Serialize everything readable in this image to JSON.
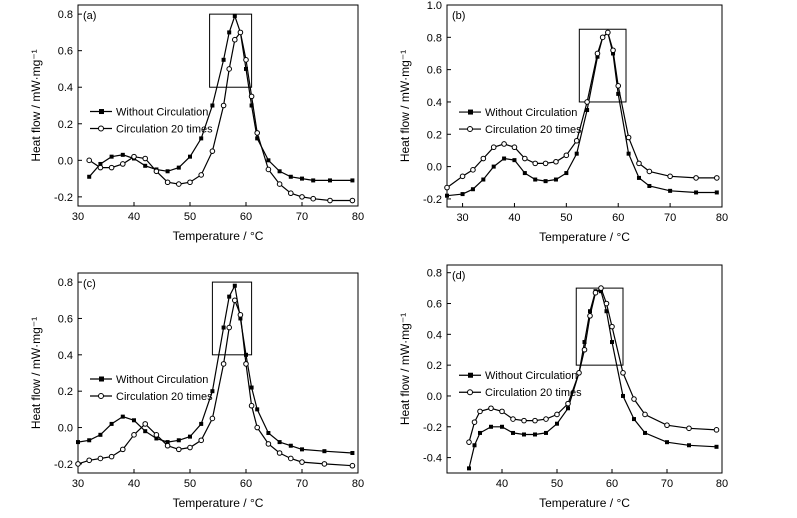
{
  "chart_data": [
    {
      "type": "line",
      "panel_label": "(a)",
      "xlabel": "Temperature / °C",
      "ylabel": "Heat flow / mW·mg⁻¹",
      "xlim": [
        30,
        80
      ],
      "ylim": [
        -0.25,
        0.85
      ],
      "xticks": [
        30,
        40,
        50,
        60,
        70,
        80
      ],
      "yticks": [
        -0.2,
        0.0,
        0.2,
        0.4,
        0.6,
        0.8
      ],
      "xtick_labels": [
        "30",
        "40",
        "50",
        "60",
        "70",
        "80"
      ],
      "ytick_labels": [
        "-0.2",
        "0.0",
        "0.2",
        "0.4",
        "0.6",
        "0.8"
      ],
      "grid": false,
      "legend_position": "center-left",
      "highlight_box": {
        "x": [
          53.5,
          61
        ],
        "y": [
          0.4,
          0.8
        ]
      },
      "series": [
        {
          "name": "Without Circulation",
          "marker": "filled-square",
          "x": [
            32,
            34,
            36,
            38,
            40,
            42,
            44,
            46,
            48,
            50,
            52,
            54,
            56,
            57,
            58,
            59,
            60,
            61,
            62,
            64,
            66,
            68,
            70,
            72,
            75,
            79
          ],
          "y": [
            -0.09,
            -0.02,
            0.02,
            0.03,
            0.01,
            -0.03,
            -0.05,
            -0.06,
            -0.04,
            0.02,
            0.12,
            0.3,
            0.55,
            0.7,
            0.79,
            0.7,
            0.5,
            0.3,
            0.12,
            0.0,
            -0.06,
            -0.09,
            -0.1,
            -0.11,
            -0.11,
            -0.11
          ]
        },
        {
          "name": "Circulation 20 times",
          "marker": "open-circle",
          "x": [
            32,
            34,
            36,
            38,
            40,
            42,
            44,
            46,
            48,
            50,
            52,
            54,
            56,
            57,
            58,
            59,
            60,
            61,
            62,
            64,
            66,
            68,
            70,
            72,
            75,
            79
          ],
          "y": [
            0.0,
            -0.04,
            -0.04,
            -0.02,
            0.02,
            0.01,
            -0.06,
            -0.12,
            -0.13,
            -0.12,
            -0.08,
            0.05,
            0.3,
            0.5,
            0.66,
            0.7,
            0.55,
            0.35,
            0.15,
            -0.05,
            -0.13,
            -0.18,
            -0.2,
            -0.21,
            -0.22,
            -0.22
          ]
        }
      ]
    },
    {
      "type": "line",
      "panel_label": "(b)",
      "xlabel": "Temperature / °C",
      "ylabel": "Heat flow / mW·mg⁻¹",
      "xlim": [
        27,
        80
      ],
      "ylim": [
        -0.25,
        1.0
      ],
      "xticks": [
        30,
        40,
        50,
        60,
        70,
        80
      ],
      "yticks": [
        -0.2,
        0.0,
        0.2,
        0.4,
        0.6,
        0.8,
        1.0
      ],
      "xtick_labels": [
        "30",
        "40",
        "50",
        "60",
        "70",
        "80"
      ],
      "ytick_labels": [
        "-0.2",
        "0.0",
        "0.2",
        "0.4",
        "0.6",
        "0.8",
        "1.0"
      ],
      "grid": false,
      "legend_position": "center-left",
      "highlight_box": {
        "x": [
          52.5,
          61.5
        ],
        "y": [
          0.4,
          0.85
        ]
      },
      "series": [
        {
          "name": "Without Circulation",
          "marker": "filled-square",
          "x": [
            27,
            30,
            32,
            34,
            36,
            38,
            40,
            42,
            44,
            46,
            48,
            50,
            52,
            54,
            56,
            57,
            58,
            59,
            60,
            62,
            64,
            66,
            70,
            75,
            79
          ],
          "y": [
            -0.18,
            -0.17,
            -0.14,
            -0.08,
            0.0,
            0.05,
            0.04,
            -0.04,
            -0.08,
            -0.09,
            -0.08,
            -0.04,
            0.08,
            0.35,
            0.68,
            0.8,
            0.83,
            0.7,
            0.45,
            0.08,
            -0.07,
            -0.12,
            -0.15,
            -0.16,
            -0.16
          ]
        },
        {
          "name": "Circulation 20 times",
          "marker": "open-circle",
          "x": [
            27,
            30,
            32,
            34,
            36,
            38,
            40,
            42,
            44,
            46,
            48,
            50,
            52,
            54,
            56,
            57,
            58,
            59,
            60,
            62,
            64,
            66,
            70,
            75,
            79
          ],
          "y": [
            -0.13,
            -0.06,
            -0.02,
            0.05,
            0.12,
            0.14,
            0.12,
            0.05,
            0.02,
            0.02,
            0.03,
            0.07,
            0.16,
            0.4,
            0.7,
            0.8,
            0.83,
            0.72,
            0.5,
            0.18,
            0.02,
            -0.03,
            -0.06,
            -0.07,
            -0.07
          ]
        }
      ]
    },
    {
      "type": "line",
      "panel_label": "(c)",
      "xlabel": "Temperature / °C",
      "ylabel": "Heat flow / mW·mg⁻¹",
      "xlim": [
        30,
        80
      ],
      "ylim": [
        -0.25,
        0.85
      ],
      "xticks": [
        30,
        40,
        50,
        60,
        70,
        80
      ],
      "yticks": [
        -0.2,
        0.0,
        0.2,
        0.4,
        0.6,
        0.8
      ],
      "xtick_labels": [
        "30",
        "40",
        "50",
        "60",
        "70",
        "80"
      ],
      "ytick_labels": [
        "-0.2",
        "0.0",
        "0.2",
        "0.4",
        "0.6",
        "0.8"
      ],
      "grid": false,
      "legend_position": "center-left",
      "highlight_box": {
        "x": [
          54,
          61
        ],
        "y": [
          0.4,
          0.8
        ]
      },
      "series": [
        {
          "name": "Without Circulation",
          "marker": "filled-square",
          "x": [
            30,
            32,
            34,
            36,
            38,
            40,
            42,
            44,
            46,
            48,
            50,
            52,
            54,
            56,
            57,
            58,
            59,
            60,
            61,
            62,
            64,
            66,
            68,
            70,
            74,
            79
          ],
          "y": [
            -0.08,
            -0.07,
            -0.04,
            0.02,
            0.06,
            0.04,
            -0.02,
            -0.06,
            -0.08,
            -0.07,
            -0.05,
            0.02,
            0.2,
            0.55,
            0.72,
            0.78,
            0.6,
            0.4,
            0.22,
            0.1,
            -0.03,
            -0.08,
            -0.1,
            -0.12,
            -0.13,
            -0.14
          ]
        },
        {
          "name": "Circulation 20 times",
          "marker": "open-circle",
          "x": [
            30,
            32,
            34,
            36,
            38,
            40,
            42,
            44,
            46,
            48,
            50,
            52,
            54,
            56,
            57,
            58,
            59,
            60,
            61,
            62,
            64,
            66,
            68,
            70,
            74,
            79
          ],
          "y": [
            -0.2,
            -0.18,
            -0.17,
            -0.16,
            -0.12,
            -0.04,
            0.02,
            -0.04,
            -0.1,
            -0.12,
            -0.11,
            -0.07,
            0.05,
            0.35,
            0.55,
            0.7,
            0.62,
            0.35,
            0.12,
            0.0,
            -0.09,
            -0.14,
            -0.17,
            -0.19,
            -0.2,
            -0.21
          ]
        }
      ]
    },
    {
      "type": "line",
      "panel_label": "(d)",
      "xlabel": "Temperature / °C",
      "ylabel": "Heat flow / mW·mg⁻¹",
      "xlim": [
        30,
        80
      ],
      "ylim": [
        -0.5,
        0.85
      ],
      "xticks": [
        40,
        50,
        60,
        70,
        80
      ],
      "yticks": [
        -0.4,
        -0.2,
        0.0,
        0.2,
        0.4,
        0.6,
        0.8
      ],
      "xtick_labels": [
        "40",
        "50",
        "60",
        "70",
        "80"
      ],
      "ytick_labels": [
        "-0.4",
        "-0.2",
        "0.0",
        "0.2",
        "0.4",
        "0.6",
        "0.8"
      ],
      "grid": false,
      "legend_position": "center-left",
      "highlight_box": {
        "x": [
          53.5,
          62
        ],
        "y": [
          0.2,
          0.7
        ]
      },
      "series": [
        {
          "name": "Without Circulation",
          "marker": "filled-square",
          "x": [
            34,
            35,
            36,
            38,
            40,
            42,
            44,
            46,
            48,
            50,
            52,
            54,
            55,
            56,
            57,
            58,
            59,
            60,
            62,
            64,
            66,
            70,
            74,
            79
          ],
          "y": [
            -0.47,
            -0.32,
            -0.24,
            -0.2,
            -0.2,
            -0.24,
            -0.25,
            -0.25,
            -0.24,
            -0.18,
            -0.08,
            0.15,
            0.35,
            0.55,
            0.68,
            0.68,
            0.55,
            0.35,
            0.0,
            -0.15,
            -0.24,
            -0.3,
            -0.32,
            -0.33
          ]
        },
        {
          "name": "Circulation 20 times",
          "marker": "open-circle",
          "x": [
            34,
            35,
            36,
            38,
            40,
            42,
            44,
            46,
            48,
            50,
            52,
            54,
            55,
            56,
            57,
            58,
            59,
            60,
            62,
            64,
            66,
            70,
            74,
            79
          ],
          "y": [
            -0.3,
            -0.17,
            -0.1,
            -0.08,
            -0.1,
            -0.15,
            -0.16,
            -0.16,
            -0.15,
            -0.12,
            -0.05,
            0.15,
            0.3,
            0.52,
            0.67,
            0.7,
            0.6,
            0.45,
            0.15,
            -0.02,
            -0.12,
            -0.19,
            -0.21,
            -0.22
          ]
        }
      ]
    }
  ]
}
